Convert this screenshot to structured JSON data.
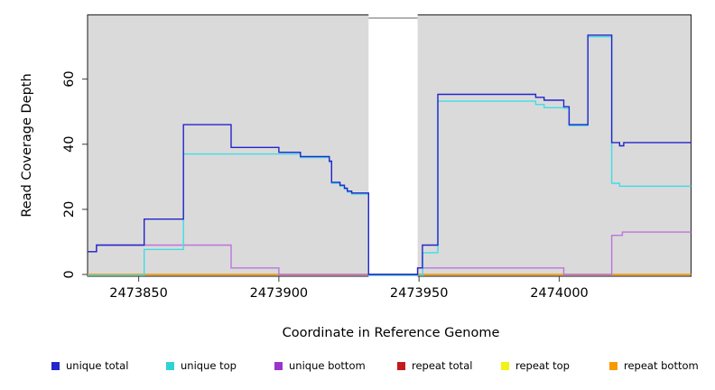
{
  "chart_data": {
    "type": "line",
    "subtype": "step-coverage",
    "title": "",
    "xlabel": "Coordinate in Reference Genome",
    "ylabel": "Read Coverage Depth",
    "x_range": [
      2473831.8,
      2474047
    ],
    "y_range": [
      -0.55,
      79.7
    ],
    "x_ticks": [
      2473850,
      2473900,
      2473950,
      2474000
    ],
    "y_ticks": [
      0,
      20,
      40,
      60
    ],
    "grid": false,
    "plot_background": "#DADADA",
    "gap": {
      "x_start": 2473932,
      "x_end": 2473949.5,
      "color": "#FFFFFF"
    },
    "series": [
      {
        "name": "repeat total",
        "color": "#C41A1A",
        "points": [
          [
            2473831.8,
            0
          ]
        ]
      },
      {
        "name": "repeat top",
        "color": "#F2F216",
        "points": [
          [
            2473831.8,
            0
          ]
        ]
      },
      {
        "name": "repeat bottom",
        "color": "#FF9D14",
        "points": [
          [
            2473831.8,
            0
          ]
        ]
      },
      {
        "name": "unique bottom",
        "color": "#BC74DE",
        "points": [
          [
            2473831.8,
            7
          ],
          [
            2473835,
            9
          ],
          [
            2473883,
            2
          ],
          [
            2473900,
            0
          ],
          [
            2473949.5,
            2
          ],
          [
            2474001.6,
            0
          ],
          [
            2474018.7,
            12
          ],
          [
            2474022.5,
            13
          ]
        ]
      },
      {
        "name": "unique top",
        "color": "#3FDDE4",
        "points": [
          [
            2473831.8,
            0
          ],
          [
            2473852,
            8
          ],
          [
            2473866,
            37.3
          ],
          [
            2473907.7,
            36.2
          ],
          [
            2473918,
            34.8
          ],
          [
            2473918.8,
            28.3
          ],
          [
            2473921.8,
            27.4
          ],
          [
            2473923.4,
            26.5
          ],
          [
            2473924.4,
            25.6
          ],
          [
            2473926,
            25
          ],
          [
            2473932,
            0
          ],
          [
            2473951.3,
            7
          ],
          [
            2473956.7,
            53.5
          ],
          [
            2473991.6,
            52.5
          ],
          [
            2473994.6,
            51.5
          ],
          [
            2474001.6,
            51.3
          ],
          [
            2474003.5,
            46
          ],
          [
            2474010.2,
            73.3
          ],
          [
            2474018.7,
            28.3
          ],
          [
            2474021.5,
            27.4
          ]
        ]
      },
      {
        "name": "unique total",
        "color": "#2424CC",
        "points": [
          [
            2473831.8,
            7
          ],
          [
            2473835,
            9
          ],
          [
            2473852,
            17
          ],
          [
            2473866,
            46
          ],
          [
            2473883,
            39
          ],
          [
            2473900,
            37.5
          ],
          [
            2473907.7,
            36.2
          ],
          [
            2473918,
            34.8
          ],
          [
            2473918.8,
            28.3
          ],
          [
            2473921.8,
            27.4
          ],
          [
            2473923.4,
            26.5
          ],
          [
            2473924.4,
            25.6
          ],
          [
            2473926,
            25
          ],
          [
            2473932,
            0
          ],
          [
            2473949.5,
            2
          ],
          [
            2473951.2,
            9
          ],
          [
            2473956.7,
            55.3
          ],
          [
            2473991.6,
            54.4
          ],
          [
            2473994.6,
            53.5
          ],
          [
            2474001.6,
            51.5
          ],
          [
            2474003.5,
            46
          ],
          [
            2474010.2,
            73.5
          ],
          [
            2474018.7,
            40.5
          ],
          [
            2474021.5,
            39.5
          ],
          [
            2474023,
            40.5
          ]
        ]
      }
    ],
    "legend": [
      {
        "label": "unique total",
        "color": "#2424CC"
      },
      {
        "label": "unique top",
        "color": "#2FD3D3"
      },
      {
        "label": "unique bottom",
        "color": "#9A33CC"
      },
      {
        "label": "repeat total",
        "color": "#C41A1A"
      },
      {
        "label": "repeat top",
        "color": "#F2F216"
      },
      {
        "label": "repeat bottom",
        "color": "#F59B00"
      }
    ],
    "legend_position": "bottom"
  }
}
